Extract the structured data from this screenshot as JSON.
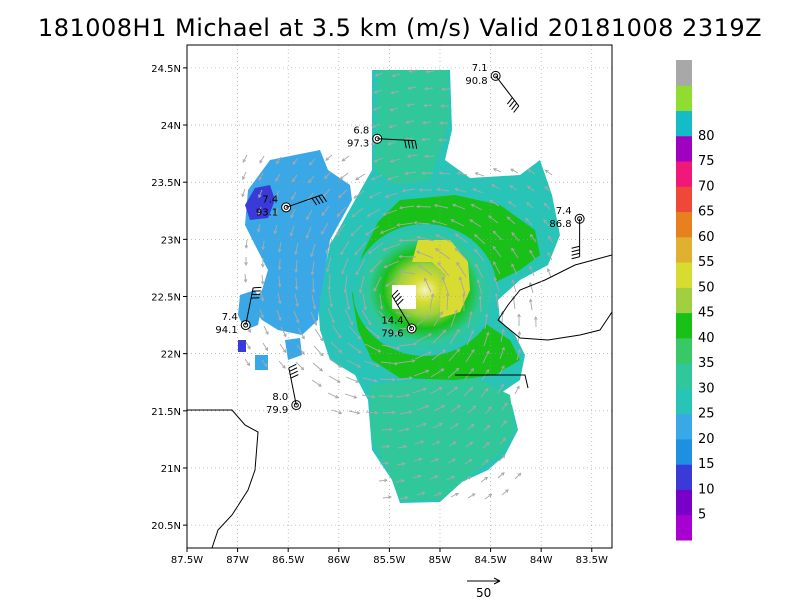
{
  "title": "181008H1 Michael at 3.5 km (m/s) Valid 20181008 2319Z",
  "map": {
    "lon_range": [
      -87.5,
      -83.3
    ],
    "lat_range": [
      20.3,
      24.7
    ],
    "lon_ticks": [
      {
        "v": -87.5,
        "label": "87.5W"
      },
      {
        "v": -87,
        "label": "87W"
      },
      {
        "v": -86.5,
        "label": "86.5W"
      },
      {
        "v": -86,
        "label": "86W"
      },
      {
        "v": -85.5,
        "label": "85.5W"
      },
      {
        "v": -85,
        "label": "85W"
      },
      {
        "v": -84.5,
        "label": "84.5W"
      },
      {
        "v": -84,
        "label": "84W"
      },
      {
        "v": -83.5,
        "label": "83.5W"
      }
    ],
    "lat_ticks": [
      {
        "v": 24.5,
        "label": "24.5N"
      },
      {
        "v": 24,
        "label": "24N"
      },
      {
        "v": 23.5,
        "label": "23.5N"
      },
      {
        "v": 23,
        "label": "23N"
      },
      {
        "v": 22.5,
        "label": "22.5N"
      },
      {
        "v": 22,
        "label": "22N"
      },
      {
        "v": 21.5,
        "label": "21.5N"
      },
      {
        "v": 21,
        "label": "21N"
      },
      {
        "v": 20.5,
        "label": "20.5N"
      }
    ],
    "grid": "dotted"
  },
  "colorbar": {
    "colors": [
      "#a800d0",
      "#7800c8",
      "#3a3ad8",
      "#1f8fe0",
      "#3aa8e6",
      "#28c4b8",
      "#30c89a",
      "#38c868",
      "#18c018",
      "#a0d040",
      "#d8dc30",
      "#e0b030",
      "#e88020",
      "#f04838",
      "#f01878",
      "#a000c0",
      "#14bcc8",
      "#90dc30",
      "#a8a8a8"
    ],
    "labels": [
      "5",
      "10",
      "15",
      "20",
      "25",
      "30",
      "35",
      "40",
      "45",
      "50",
      "55",
      "60",
      "65",
      "70",
      "75",
      "80"
    ]
  },
  "stations": [
    {
      "lon": -84.45,
      "lat": 24.43,
      "top": "7.1",
      "bottom": "90.8"
    },
    {
      "lon": -85.62,
      "lat": 23.88,
      "top": "6.8",
      "bottom": "97.3"
    },
    {
      "lon": -86.52,
      "lat": 23.28,
      "top": "7.4",
      "bottom": "93.1"
    },
    {
      "lon": -83.62,
      "lat": 23.18,
      "top": "7.4",
      "bottom": "86.8"
    },
    {
      "lon": -86.92,
      "lat": 22.25,
      "top": "7.4",
      "bottom": "94.1"
    },
    {
      "lon": -85.28,
      "lat": 22.22,
      "top": "14.4",
      "bottom": "79.6"
    },
    {
      "lon": -86.42,
      "lat": 21.55,
      "top": "8.0",
      "bottom": "79.9"
    }
  ],
  "reference_vector": {
    "label": "50"
  }
}
